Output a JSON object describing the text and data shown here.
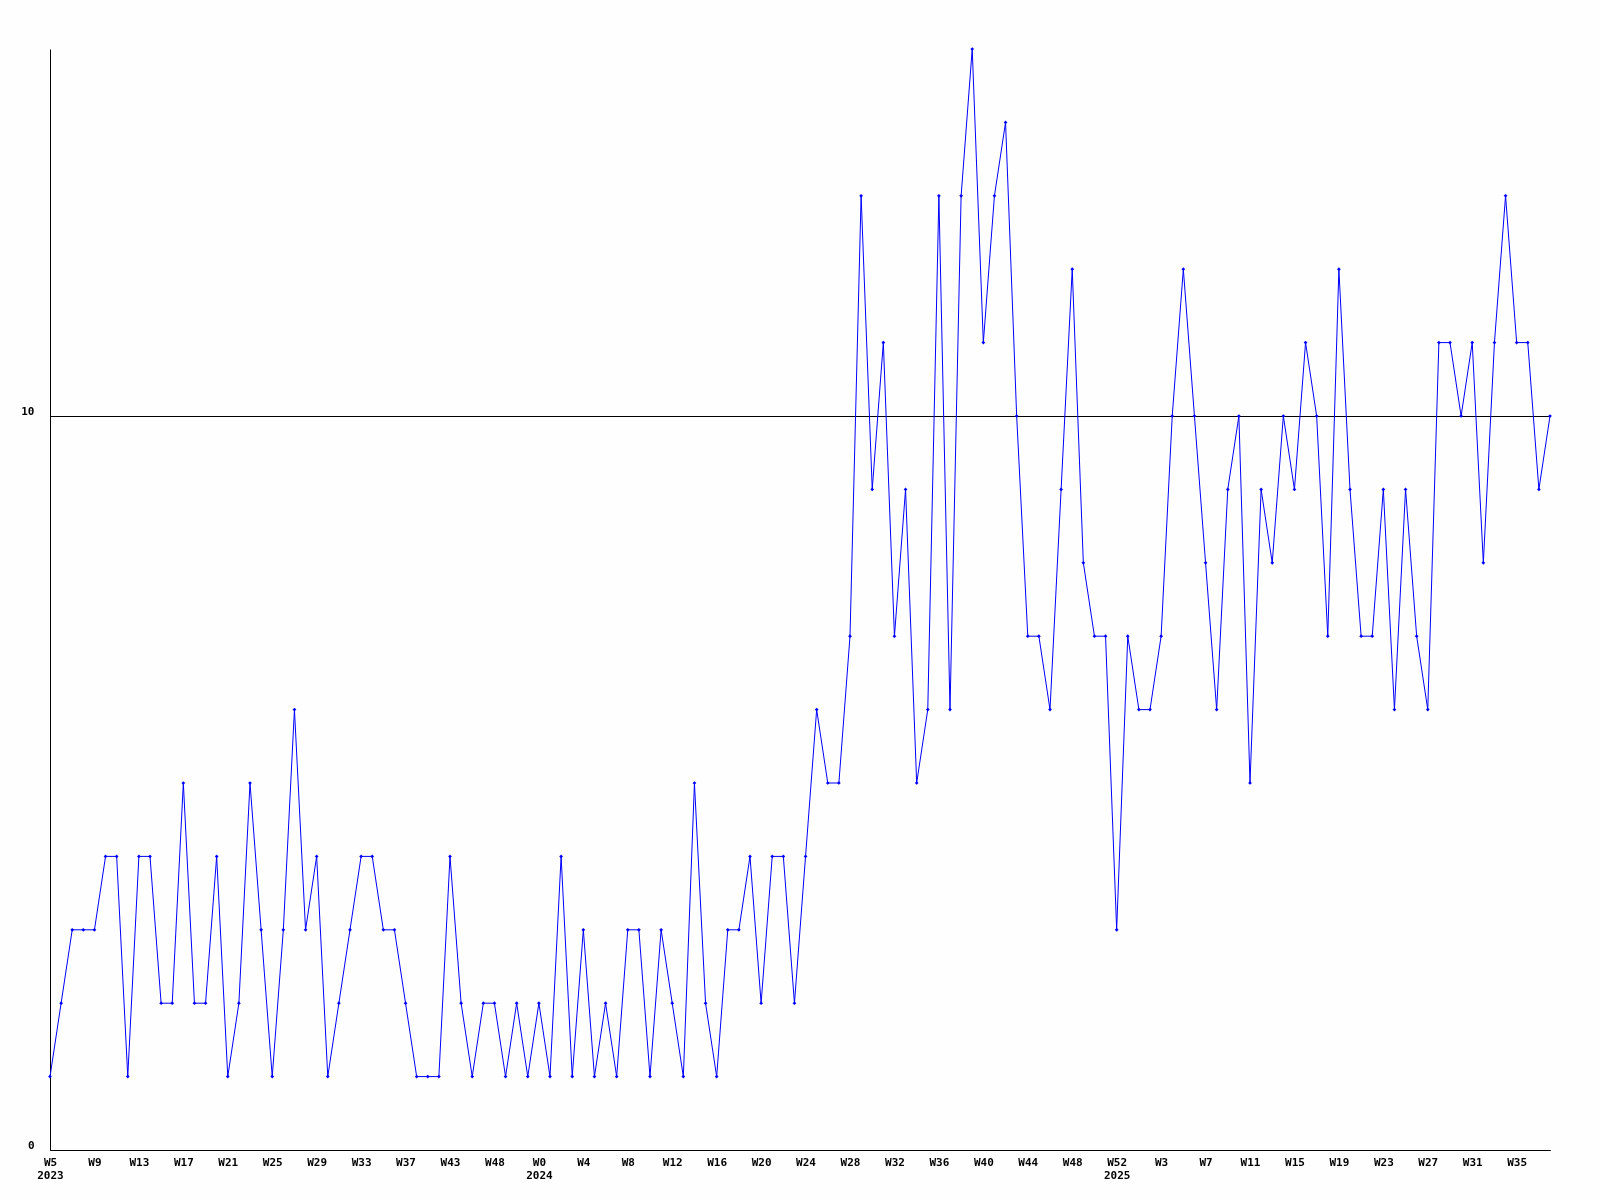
{
  "chart_data": {
    "type": "line",
    "categories": [
      "W5\n2023",
      null,
      null,
      null,
      "W9",
      null,
      null,
      null,
      "W13",
      null,
      null,
      null,
      "W17",
      null,
      null,
      null,
      "W21",
      null,
      null,
      null,
      "W25",
      null,
      null,
      null,
      "W29",
      null,
      null,
      null,
      "W33",
      null,
      null,
      null,
      "W37",
      null,
      null,
      null,
      "W43",
      null,
      null,
      null,
      "W48",
      null,
      null,
      null,
      "W0\n2024",
      null,
      null,
      null,
      "W4",
      null,
      null,
      null,
      "W8",
      null,
      null,
      null,
      "W12",
      null,
      null,
      null,
      "W16",
      null,
      null,
      null,
      "W20",
      null,
      null,
      null,
      "W24",
      null,
      null,
      null,
      "W28",
      null,
      null,
      null,
      "W32",
      null,
      null,
      null,
      "W36",
      null,
      null,
      null,
      "W40",
      null,
      null,
      null,
      "W44",
      null,
      null,
      null,
      "W48",
      null,
      null,
      null,
      "W52\n2025",
      null,
      null,
      null,
      "W3",
      null,
      null,
      null,
      "W7",
      null,
      null,
      null,
      "W11",
      null,
      null,
      null,
      "W15",
      null,
      null,
      null,
      "W19",
      null,
      null,
      null,
      "W23",
      null,
      null,
      null,
      "W27",
      null,
      null,
      null,
      "W31",
      null,
      null,
      null,
      "W35",
      null,
      null,
      null
    ],
    "series": [
      {
        "color": "#0000ff",
        "values": [
          1,
          2,
          3,
          3,
          3,
          4,
          4,
          1,
          4,
          4,
          2,
          2,
          5,
          2,
          2,
          4,
          1,
          2,
          5,
          3,
          1,
          3,
          6,
          3,
          4,
          1,
          2,
          3,
          4,
          4,
          3,
          3,
          2,
          1,
          1,
          1,
          4,
          2,
          1,
          2,
          2,
          1,
          2,
          1,
          2,
          1,
          4,
          1,
          3,
          1,
          2,
          1,
          3,
          3,
          1,
          3,
          2,
          1,
          5,
          2,
          1,
          3,
          3,
          4,
          2,
          4,
          4,
          2,
          4,
          6,
          5,
          5,
          7,
          13,
          9,
          11,
          7,
          9,
          5,
          6,
          13,
          6,
          13,
          15,
          11,
          13,
          14,
          10,
          7,
          7,
          6,
          9,
          12,
          8,
          7,
          7,
          3,
          7,
          6,
          6,
          7,
          10,
          12,
          10,
          8,
          6,
          9,
          10,
          5,
          9,
          8,
          10,
          9,
          11,
          10,
          7,
          12,
          9,
          7,
          7,
          9,
          6,
          9,
          7,
          6,
          11,
          11,
          10,
          11,
          8,
          11,
          13,
          11,
          11,
          9,
          10
        ]
      }
    ],
    "ylim": [
      0,
      15
    ],
    "yticks": [
      0,
      10
    ],
    "grid": "y",
    "marker": "diamond",
    "line_style": "solid"
  }
}
